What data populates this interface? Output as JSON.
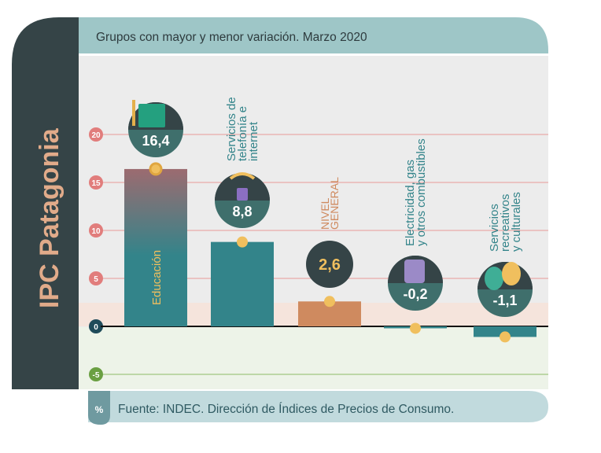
{
  "side_title": "IPC Patagonia",
  "colors": {
    "panel": "#354447",
    "header": "#9ec6c7",
    "bar": "#33848a",
    "general": "#cf8a5f",
    "dot": "#f0bf5e",
    "tick_pos": "#e17d7c",
    "tick_zero": "#1f4b5a",
    "tick_neg": "#6a9f42",
    "footer": "#c1dadd"
  },
  "footer": {
    "badge": "%",
    "source": "Fuente: INDEC. Dirección de Índices de Precios de Consumo."
  },
  "chart_data": {
    "type": "bar",
    "title": "Grupos con mayor y menor variación. Marzo 2020",
    "ylabel": "",
    "ylim": [
      -6.5,
      24
    ],
    "yticks": [
      "20",
      "15",
      "10",
      "5",
      "0",
      "-5"
    ],
    "grid": true,
    "categories": [
      {
        "label": "Educación",
        "value": 16.4,
        "value_label": "16,4",
        "icon": "book-icon",
        "label_inside": true
      },
      {
        "label": "Servicios de\ntelefonía e\ninternet",
        "value": 8.8,
        "value_label": "8,8",
        "icon": "phone-wifi-icon"
      },
      {
        "label": "NIVEL\nGENERAL",
        "value": 2.6,
        "value_label": "2,6",
        "icon": "",
        "general": true
      },
      {
        "label": "Electricidad, gas\ny otros combustibles",
        "value": -0.2,
        "value_label": "-0,2",
        "icon": "gas-cylinder-icon"
      },
      {
        "label": "Servicios\nrecreativos\ny culturales",
        "value": -1.1,
        "value_label": "-1,1",
        "icon": "theater-masks-icon"
      }
    ]
  }
}
